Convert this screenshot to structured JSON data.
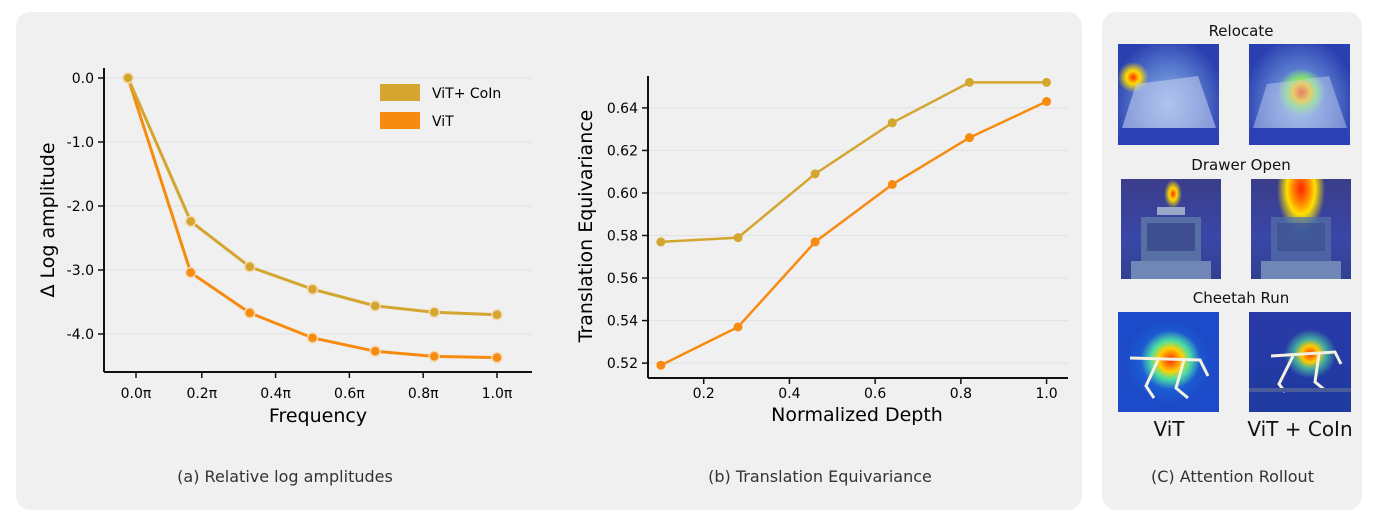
{
  "chart_data": [
    {
      "type": "line",
      "xlabel": "Frequency",
      "ylabel": "Δ Log amplitude",
      "x": [
        "0.0π",
        "0.2π",
        "0.4π",
        "0.6π",
        "0.8π",
        "1.0π"
      ],
      "yticks": [
        "0.0",
        "-1.0",
        "-2.0",
        "-3.0",
        "-4.0"
      ],
      "ylim": [
        -4.5,
        0.1
      ],
      "legend_position": "top-right",
      "series": [
        {
          "name": "ViT+ CoIn",
          "color": "#d4a52f",
          "x": [
            0.0,
            0.17,
            0.33,
            0.5,
            0.67,
            0.83,
            1.0
          ],
          "values": [
            0.0,
            -2.24,
            -2.95,
            -3.3,
            -3.56,
            -3.66,
            -3.7
          ]
        },
        {
          "name": "ViT",
          "color": "#f78b10",
          "x": [
            0.0,
            0.17,
            0.33,
            0.5,
            0.67,
            0.83,
            1.0
          ],
          "values": [
            0.0,
            -3.04,
            -3.67,
            -4.06,
            -4.27,
            -4.35,
            -4.37
          ]
        }
      ],
      "caption": "(a) Relative log amplitudes"
    },
    {
      "type": "line",
      "xlabel": "Normalized Depth",
      "ylabel": "Translation Equivariance",
      "xticks": [
        "0.2",
        "0.4",
        "0.6",
        "0.8",
        "1.0"
      ],
      "yticks": [
        "0.52",
        "0.54",
        "0.56",
        "0.58",
        "0.60",
        "0.62",
        "0.64"
      ],
      "xlim": [
        0.07,
        1.05
      ],
      "ylim": [
        0.513,
        0.655
      ],
      "series": [
        {
          "color": "#d4a52f",
          "x": [
            0.1,
            0.28,
            0.46,
            0.64,
            0.82,
            1.0
          ],
          "values": [
            0.577,
            0.579,
            0.609,
            0.633,
            0.652,
            0.652
          ]
        },
        {
          "color": "#f78b10",
          "x": [
            0.1,
            0.28,
            0.46,
            0.64,
            0.82,
            1.0
          ],
          "values": [
            0.519,
            0.537,
            0.577,
            0.604,
            0.626,
            0.643
          ]
        }
      ],
      "caption": "(b) Translation Equivariance"
    }
  ],
  "attention": {
    "rows": [
      "Relocate",
      "Drawer Open",
      "Cheetah Run"
    ],
    "columns": [
      "ViT",
      "ViT + CoIn"
    ],
    "caption": "(C) Attention Rollout"
  }
}
